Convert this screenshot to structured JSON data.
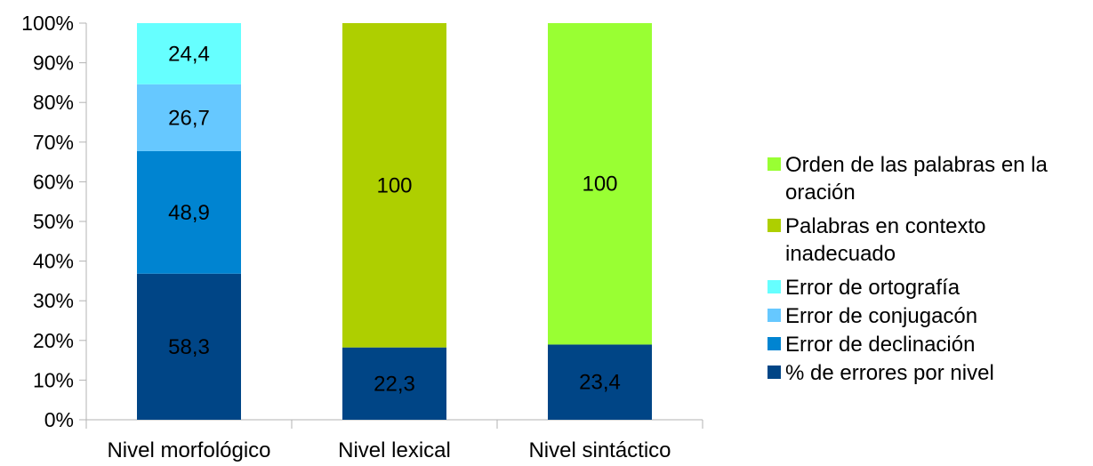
{
  "chart_data": {
    "type": "bar",
    "stacked": "percent",
    "categories": [
      "Nivel morfológico",
      "Nivel lexical",
      "Nivel sintáctico"
    ],
    "yticks": [
      "0%",
      "10%",
      "20%",
      "30%",
      "40%",
      "50%",
      "60%",
      "70%",
      "80%",
      "90%",
      "100%"
    ],
    "ylim": [
      0,
      100
    ],
    "grid": false,
    "legend_position": "right",
    "series": [
      {
        "name": "% de errores por nivel",
        "color": "#004586",
        "values": [
          58.3,
          22.3,
          23.4
        ],
        "labels": [
          "58,3",
          "22,3",
          "23,4"
        ]
      },
      {
        "name": "Error de declinación",
        "color": "#0084d1",
        "values": [
          48.9,
          0,
          0
        ],
        "labels": [
          "48,9",
          "",
          ""
        ]
      },
      {
        "name": "Error de conjugacón",
        "color": "#66c8ff",
        "values": [
          26.7,
          0,
          0
        ],
        "labels": [
          "26,7",
          "",
          ""
        ]
      },
      {
        "name": "Error de ortografía",
        "color": "#66ffff",
        "values": [
          24.4,
          0,
          0
        ],
        "labels": [
          "24,4",
          "",
          ""
        ]
      },
      {
        "name": "Palabras en contexto inadecuado",
        "color": "#aecf00",
        "values": [
          0,
          100,
          0
        ],
        "labels": [
          "",
          "100",
          ""
        ]
      },
      {
        "name": "Orden de las palabras en la oración",
        "color": "#99ff33",
        "values": [
          0,
          0,
          100
        ],
        "labels": [
          "",
          "",
          "100"
        ]
      }
    ],
    "legend_lines": [
      [
        "Orden de las palabras en la",
        "oración"
      ],
      [
        "Palabras en contexto",
        "inadecuado"
      ],
      [
        "Error de ortografía"
      ],
      [
        "Error de conjugacón"
      ],
      [
        "Error de declinación"
      ],
      [
        "% de errores por nivel"
      ]
    ]
  }
}
